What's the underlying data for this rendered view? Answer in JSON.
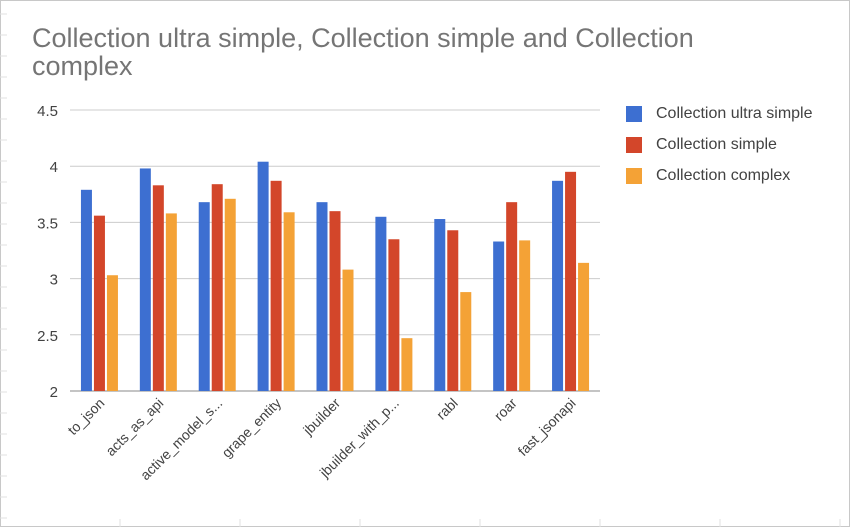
{
  "chart_data": {
    "type": "bar",
    "title": "Collection ultra simple, Collection simple and Collection complex",
    "categories": [
      "to_json",
      "acts_as_api",
      "active_model_s...",
      "grape_entity",
      "jbuilder",
      "jbuilder_with_p...",
      "rabl",
      "roar",
      "fast_jsonapi"
    ],
    "series": [
      {
        "name": "Collection ultra simple",
        "color": "#3d6fd1",
        "values": [
          3.79,
          3.98,
          3.68,
          4.04,
          3.68,
          3.55,
          3.53,
          3.33,
          3.87
        ]
      },
      {
        "name": "Collection simple",
        "color": "#d3462a",
        "values": [
          3.56,
          3.83,
          3.84,
          3.87,
          3.6,
          3.35,
          3.43,
          3.68,
          3.95
        ]
      },
      {
        "name": "Collection complex",
        "color": "#f4a236",
        "values": [
          3.03,
          3.58,
          3.71,
          3.59,
          3.08,
          2.47,
          2.88,
          3.34,
          3.14
        ]
      }
    ],
    "yticks": [
      "2",
      "2.5",
      "3",
      "3.5",
      "4",
      "4.5"
    ],
    "ylim": [
      2,
      4.5
    ],
    "grid": true,
    "legend": "right"
  }
}
